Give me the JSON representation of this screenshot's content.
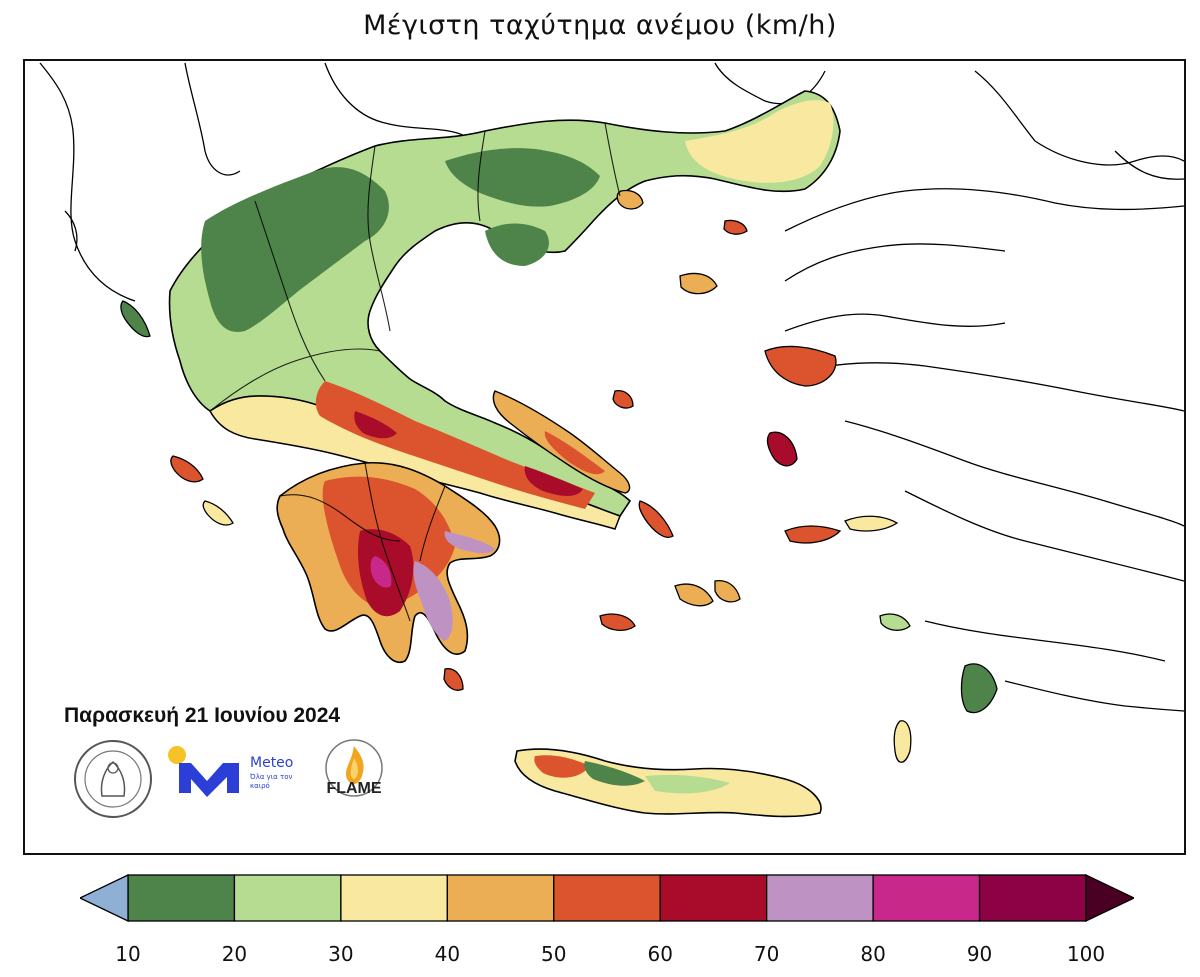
{
  "title": "Μέγιστη ταχύτημα ανέμου (km/h)",
  "date_label": "Παρασκευή 21 Ιουνίου 2024",
  "logos": {
    "meteo_name": "Meteo",
    "meteo_tagline": "Όλα για τον καιρό",
    "flame_name": "FLAME"
  },
  "colors": {
    "under": "#8eb0d4",
    "over": "#4a0022",
    "bins": [
      "#4e8449",
      "#b6dc92",
      "#f9e9a0",
      "#ebae55",
      "#dc542e",
      "#a80c2a",
      "#be93c4",
      "#c8288a",
      "#8d0145"
    ],
    "land_outline": "#000000"
  },
  "colorbar": {
    "ticks": [
      10,
      20,
      30,
      40,
      50,
      60,
      70,
      80,
      90,
      100
    ],
    "min": 10,
    "max": 100,
    "extend": "both"
  },
  "map": {
    "region": "Greece",
    "variable": "maximum wind speed",
    "units": "km/h"
  }
}
